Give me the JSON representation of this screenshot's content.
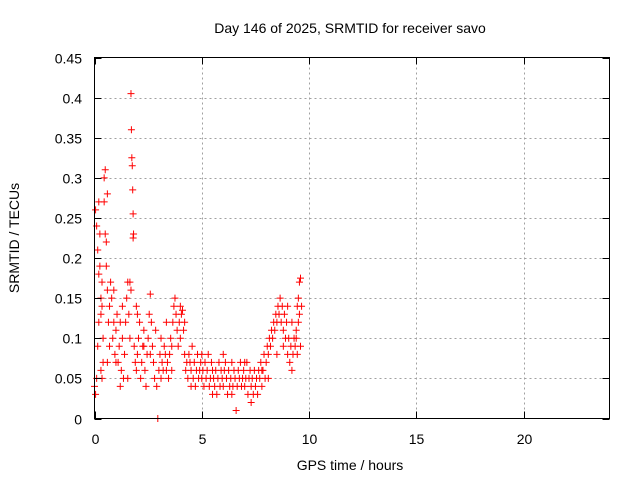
{
  "chart_data": {
    "type": "scatter",
    "title": "Day 146 of 2025, SRMTID for receiver savo",
    "xlabel": "GPS time / hours",
    "ylabel": "SRMTID / TECUs",
    "xlim": [
      0,
      24
    ],
    "ylim": [
      0,
      0.45
    ],
    "x_ticks": [
      0,
      5,
      10,
      15,
      20
    ],
    "x_tick_labels": [
      "0",
      "5",
      "10",
      "15",
      "20"
    ],
    "y_ticks": [
      0,
      0.05,
      0.1,
      0.15,
      0.2,
      0.25,
      0.3,
      0.35,
      0.4,
      0.45
    ],
    "y_tick_labels": [
      "0",
      "0.05",
      "0.1",
      "0.15",
      "0.2",
      "0.25",
      "0.3",
      "0.35",
      "0.4",
      "0.45"
    ],
    "grid": true,
    "marker": "plus",
    "color": "#ff0000",
    "series": [
      {
        "name": "SRMTID",
        "points": [
          [
            0.0,
            0.04
          ],
          [
            0.05,
            0.03
          ],
          [
            0.05,
            0.26
          ],
          [
            0.1,
            0.24
          ],
          [
            0.1,
            0.05
          ],
          [
            0.15,
            0.21
          ],
          [
            0.15,
            0.09
          ],
          [
            0.2,
            0.27
          ],
          [
            0.2,
            0.18
          ],
          [
            0.2,
            0.12
          ],
          [
            0.25,
            0.19
          ],
          [
            0.25,
            0.23
          ],
          [
            0.3,
            0.15
          ],
          [
            0.3,
            0.13
          ],
          [
            0.3,
            0.06
          ],
          [
            0.35,
            0.14
          ],
          [
            0.35,
            0.17
          ],
          [
            0.4,
            0.1
          ],
          [
            0.4,
            0.07
          ],
          [
            0.45,
            0.3
          ],
          [
            0.45,
            0.27
          ],
          [
            0.5,
            0.31
          ],
          [
            0.5,
            0.23
          ],
          [
            0.55,
            0.22
          ],
          [
            0.55,
            0.19
          ],
          [
            0.6,
            0.28
          ],
          [
            0.6,
            0.16
          ],
          [
            0.65,
            0.12
          ],
          [
            0.7,
            0.14
          ],
          [
            0.7,
            0.09
          ],
          [
            0.75,
            0.17
          ],
          [
            0.8,
            0.15
          ],
          [
            0.85,
            0.1
          ],
          [
            0.9,
            0.12
          ],
          [
            0.95,
            0.08
          ],
          [
            1.0,
            0.11
          ],
          [
            1.05,
            0.13
          ],
          [
            1.1,
            0.07
          ],
          [
            1.15,
            0.09
          ],
          [
            1.2,
            0.12
          ],
          [
            1.25,
            0.06
          ],
          [
            1.3,
            0.1
          ],
          [
            1.35,
            0.05
          ],
          [
            1.4,
            0.08
          ],
          [
            1.45,
            0.12
          ],
          [
            1.5,
            0.15
          ],
          [
            1.55,
            0.17
          ],
          [
            1.6,
            0.13
          ],
          [
            1.65,
            0.1
          ],
          [
            1.7,
            0.16
          ],
          [
            1.7,
            0.405
          ],
          [
            1.72,
            0.36
          ],
          [
            1.74,
            0.325
          ],
          [
            1.76,
            0.315
          ],
          [
            1.78,
            0.285
          ],
          [
            1.8,
            0.255
          ],
          [
            1.8,
            0.225
          ],
          [
            1.82,
            0.23
          ],
          [
            1.85,
            0.09
          ],
          [
            1.9,
            0.07
          ],
          [
            1.95,
            0.06
          ],
          [
            2.0,
            0.08
          ],
          [
            2.05,
            0.1
          ],
          [
            2.1,
            0.12
          ],
          [
            2.15,
            0.05
          ],
          [
            2.2,
            0.07
          ],
          [
            2.25,
            0.09
          ],
          [
            2.3,
            0.11
          ],
          [
            2.35,
            0.06
          ],
          [
            2.4,
            0.04
          ],
          [
            2.45,
            0.08
          ],
          [
            2.5,
            0.1
          ],
          [
            2.55,
            0.13
          ],
          [
            2.6,
            0.155
          ],
          [
            2.65,
            0.12
          ],
          [
            2.7,
            0.09
          ],
          [
            2.75,
            0.07
          ],
          [
            2.8,
            0.05
          ],
          [
            2.85,
            0.11
          ],
          [
            2.9,
            0.04
          ],
          [
            2.95,
            0.0
          ],
          [
            3.0,
            0.06
          ],
          [
            3.05,
            0.08
          ],
          [
            3.1,
            0.1
          ],
          [
            3.15,
            0.07
          ],
          [
            3.2,
            0.06
          ],
          [
            3.25,
            0.09
          ],
          [
            3.3,
            0.08
          ],
          [
            3.35,
            0.06
          ],
          [
            3.4,
            0.07
          ],
          [
            3.45,
            0.05
          ],
          [
            3.5,
            0.08
          ],
          [
            3.55,
            0.1
          ],
          [
            3.6,
            0.09
          ],
          [
            3.65,
            0.12
          ],
          [
            3.7,
            0.14
          ],
          [
            3.75,
            0.15
          ],
          [
            3.8,
            0.13
          ],
          [
            3.85,
            0.11
          ],
          [
            3.9,
            0.09
          ],
          [
            3.95,
            0.12
          ],
          [
            4.0,
            0.1
          ],
          [
            4.05,
            0.13
          ],
          [
            4.1,
            0.135
          ],
          [
            4.15,
            0.11
          ],
          [
            4.2,
            0.08
          ],
          [
            4.25,
            0.06
          ],
          [
            4.3,
            0.07
          ],
          [
            4.35,
            0.05
          ],
          [
            4.4,
            0.08
          ],
          [
            4.45,
            0.07
          ],
          [
            4.5,
            0.06
          ],
          [
            4.55,
            0.09
          ],
          [
            4.6,
            0.05
          ],
          [
            4.65,
            0.07
          ],
          [
            4.7,
            0.04
          ],
          [
            4.75,
            0.06
          ],
          [
            4.8,
            0.08
          ],
          [
            4.85,
            0.05
          ],
          [
            4.9,
            0.06
          ],
          [
            4.95,
            0.07
          ],
          [
            5.0,
            0.05
          ],
          [
            5.05,
            0.06
          ],
          [
            5.1,
            0.04
          ],
          [
            5.15,
            0.07
          ],
          [
            5.2,
            0.05
          ],
          [
            5.25,
            0.06
          ],
          [
            5.3,
            0.08
          ],
          [
            5.35,
            0.04
          ],
          [
            5.4,
            0.05
          ],
          [
            5.45,
            0.07
          ],
          [
            5.5,
            0.06
          ],
          [
            5.55,
            0.05
          ],
          [
            5.6,
            0.04
          ],
          [
            5.65,
            0.06
          ],
          [
            5.7,
            0.03
          ],
          [
            5.75,
            0.05
          ],
          [
            5.8,
            0.07
          ],
          [
            5.85,
            0.04
          ],
          [
            5.9,
            0.06
          ],
          [
            5.95,
            0.05
          ],
          [
            6.0,
            0.04
          ],
          [
            6.05,
            0.06
          ],
          [
            6.1,
            0.07
          ],
          [
            6.15,
            0.05
          ],
          [
            6.2,
            0.03
          ],
          [
            6.25,
            0.06
          ],
          [
            6.3,
            0.04
          ],
          [
            6.35,
            0.05
          ],
          [
            6.4,
            0.07
          ],
          [
            6.45,
            0.04
          ],
          [
            6.5,
            0.06
          ],
          [
            6.55,
            0.05
          ],
          [
            6.6,
            0.01
          ],
          [
            6.65,
            0.04
          ],
          [
            6.7,
            0.06
          ],
          [
            6.75,
            0.05
          ],
          [
            6.8,
            0.07
          ],
          [
            6.85,
            0.04
          ],
          [
            6.9,
            0.05
          ],
          [
            6.95,
            0.06
          ],
          [
            7.0,
            0.04
          ],
          [
            7.05,
            0.05
          ],
          [
            7.1,
            0.07
          ],
          [
            7.15,
            0.03
          ],
          [
            7.2,
            0.05
          ],
          [
            7.25,
            0.06
          ],
          [
            7.3,
            0.04
          ],
          [
            7.35,
            0.05
          ],
          [
            7.4,
            0.03
          ],
          [
            7.45,
            0.06
          ],
          [
            7.5,
            0.04
          ],
          [
            7.55,
            0.05
          ],
          [
            7.6,
            0.03
          ],
          [
            7.65,
            0.06
          ],
          [
            7.7,
            0.05
          ],
          [
            7.75,
            0.07
          ],
          [
            7.8,
            0.04
          ],
          [
            7.85,
            0.06
          ],
          [
            7.9,
            0.08
          ],
          [
            7.95,
            0.05
          ],
          [
            8.0,
            0.07
          ],
          [
            8.05,
            0.09
          ],
          [
            8.1,
            0.08
          ],
          [
            8.15,
            0.1
          ],
          [
            8.2,
            0.09
          ],
          [
            8.25,
            0.11
          ],
          [
            8.3,
            0.1
          ],
          [
            8.35,
            0.12
          ],
          [
            8.4,
            0.11
          ],
          [
            8.45,
            0.13
          ],
          [
            8.5,
            0.12
          ],
          [
            8.55,
            0.14
          ],
          [
            8.6,
            0.13
          ],
          [
            8.65,
            0.15
          ],
          [
            8.7,
            0.12
          ],
          [
            8.75,
            0.14
          ],
          [
            8.8,
            0.11
          ],
          [
            8.85,
            0.13
          ],
          [
            8.9,
            0.1
          ],
          [
            8.95,
            0.12
          ],
          [
            9.0,
            0.08
          ],
          [
            9.05,
            0.1
          ],
          [
            9.1,
            0.07
          ],
          [
            9.15,
            0.09
          ],
          [
            9.2,
            0.06
          ],
          [
            9.25,
            0.08
          ],
          [
            9.3,
            0.1
          ],
          [
            9.35,
            0.09
          ],
          [
            9.4,
            0.11
          ],
          [
            9.45,
            0.08
          ],
          [
            9.5,
            0.15
          ],
          [
            9.55,
            0.17
          ],
          [
            9.6,
            0.175
          ],
          [
            9.65,
            0.14
          ],
          [
            9.6,
            0.09
          ],
          [
            9.55,
            0.13
          ],
          [
            9.5,
            0.12
          ],
          [
            9.45,
            0.14
          ],
          [
            9.4,
            0.1
          ],
          [
            0.35,
            0.05
          ],
          [
            0.6,
            0.07
          ],
          [
            1.0,
            0.07
          ],
          [
            1.2,
            0.04
          ],
          [
            1.55,
            0.05
          ],
          [
            2.0,
            0.13
          ],
          [
            2.3,
            0.09
          ],
          [
            2.6,
            0.08
          ],
          [
            3.1,
            0.05
          ],
          [
            3.6,
            0.06
          ],
          [
            4.0,
            0.14
          ],
          [
            4.2,
            0.12
          ],
          [
            4.5,
            0.04
          ],
          [
            5.0,
            0.08
          ],
          [
            5.5,
            0.03
          ],
          [
            6.0,
            0.08
          ],
          [
            6.4,
            0.03
          ],
          [
            7.0,
            0.07
          ],
          [
            7.3,
            0.02
          ],
          [
            7.8,
            0.06
          ],
          [
            8.1,
            0.05
          ],
          [
            8.5,
            0.08
          ],
          [
            8.8,
            0.09
          ],
          [
            9.0,
            0.14
          ],
          [
            9.2,
            0.12
          ],
          [
            0.9,
            0.16
          ],
          [
            1.3,
            0.14
          ],
          [
            1.65,
            0.17
          ],
          [
            1.95,
            0.14
          ],
          [
            3.35,
            0.12
          ]
        ]
      }
    ]
  }
}
